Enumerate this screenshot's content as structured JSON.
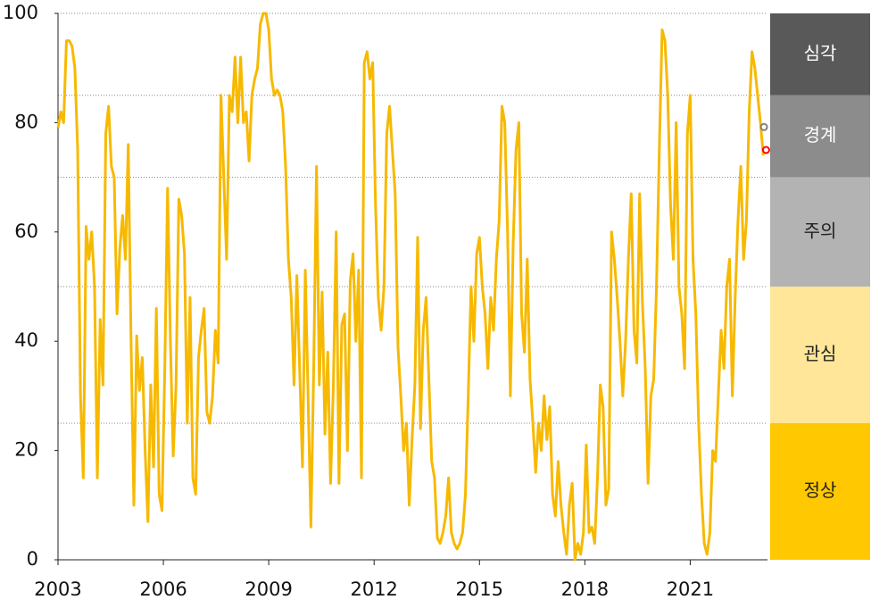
{
  "chart_data": {
    "type": "line",
    "xlim": [
      2003,
      2023.2
    ],
    "xticks": [
      2003,
      2006,
      2009,
      2012,
      2015,
      2018,
      2021
    ],
    "ylim": [
      0,
      100
    ],
    "yticks": [
      0,
      20,
      40,
      60,
      80,
      100
    ],
    "series": [
      {
        "color": "#f7b900",
        "x": [
          2003,
          2003.08,
          2003.16,
          2003.24,
          2003.32,
          2003.4,
          2003.48,
          2003.56,
          2003.64,
          2003.72,
          2003.8,
          2003.88,
          2003.96,
          2004.04,
          2004.12,
          2004.2,
          2004.28,
          2004.36,
          2004.44,
          2004.52,
          2004.6,
          2004.68,
          2004.76,
          2004.84,
          2004.92,
          2005,
          2005.08,
          2005.16,
          2005.24,
          2005.32,
          2005.4,
          2005.48,
          2005.56,
          2005.64,
          2005.72,
          2005.8,
          2005.88,
          2005.96,
          2006.04,
          2006.12,
          2006.2,
          2006.28,
          2006.36,
          2006.44,
          2006.52,
          2006.6,
          2006.68,
          2006.76,
          2006.84,
          2006.92,
          2007,
          2007.08,
          2007.16,
          2007.24,
          2007.32,
          2007.4,
          2007.48,
          2007.56,
          2007.64,
          2007.72,
          2007.8,
          2007.88,
          2007.96,
          2008.04,
          2008.12,
          2008.2,
          2008.28,
          2008.36,
          2008.44,
          2008.52,
          2008.6,
          2008.68,
          2008.76,
          2008.84,
          2008.92,
          2009,
          2009.08,
          2009.16,
          2009.24,
          2009.32,
          2009.4,
          2009.48,
          2009.56,
          2009.64,
          2009.72,
          2009.8,
          2009.88,
          2009.96,
          2010.04,
          2010.12,
          2010.2,
          2010.28,
          2010.36,
          2010.44,
          2010.52,
          2010.6,
          2010.68,
          2010.76,
          2010.84,
          2010.92,
          2011,
          2011.08,
          2011.16,
          2011.24,
          2011.32,
          2011.4,
          2011.48,
          2011.56,
          2011.64,
          2011.72,
          2011.8,
          2011.88,
          2011.96,
          2012.04,
          2012.12,
          2012.2,
          2012.28,
          2012.36,
          2012.44,
          2012.52,
          2012.6,
          2012.68,
          2012.76,
          2012.84,
          2012.92,
          2013,
          2013.08,
          2013.16,
          2013.24,
          2013.32,
          2013.4,
          2013.48,
          2013.56,
          2013.64,
          2013.72,
          2013.8,
          2013.88,
          2013.96,
          2014.04,
          2014.12,
          2014.2,
          2014.28,
          2014.36,
          2014.44,
          2014.52,
          2014.6,
          2014.68,
          2014.76,
          2014.84,
          2014.92,
          2015,
          2015.08,
          2015.16,
          2015.24,
          2015.32,
          2015.4,
          2015.48,
          2015.56,
          2015.64,
          2015.72,
          2015.8,
          2015.88,
          2015.96,
          2016.04,
          2016.12,
          2016.2,
          2016.28,
          2016.36,
          2016.44,
          2016.52,
          2016.6,
          2016.68,
          2016.76,
          2016.84,
          2016.92,
          2017,
          2017.08,
          2017.16,
          2017.24,
          2017.32,
          2017.4,
          2017.48,
          2017.56,
          2017.64,
          2017.72,
          2017.8,
          2017.88,
          2017.96,
          2018.04,
          2018.12,
          2018.2,
          2018.28,
          2018.36,
          2018.44,
          2018.52,
          2018.6,
          2018.68,
          2018.76,
          2018.84,
          2018.92,
          2019,
          2019.08,
          2019.16,
          2019.24,
          2019.32,
          2019.4,
          2019.48,
          2019.56,
          2019.64,
          2019.72,
          2019.8,
          2019.88,
          2019.96,
          2020.04,
          2020.12,
          2020.2,
          2020.28,
          2020.36,
          2020.44,
          2020.52,
          2020.6,
          2020.68,
          2020.76,
          2020.84,
          2020.92,
          2021,
          2021.08,
          2021.16,
          2021.24,
          2021.32,
          2021.4,
          2021.48,
          2021.56,
          2021.64,
          2021.72,
          2021.8,
          2021.88,
          2021.96,
          2022.04,
          2022.12,
          2022.2,
          2022.28,
          2022.36,
          2022.44,
          2022.52,
          2022.6,
          2022.68,
          2022.76,
          2022.84,
          2022.92,
          2023,
          2023.08
        ],
        "values": [
          79,
          82,
          80,
          95,
          95,
          94,
          90,
          75,
          30,
          15,
          61,
          55,
          60,
          50,
          15,
          44,
          32,
          78,
          83,
          72,
          70,
          45,
          57,
          63,
          55,
          76,
          40,
          10,
          41,
          31,
          37,
          20,
          7,
          32,
          17,
          46,
          12,
          9,
          35,
          68,
          40,
          19,
          32,
          66,
          63,
          56,
          25,
          48,
          15,
          12,
          37,
          42,
          46,
          27,
          25,
          30,
          42,
          36,
          85,
          70,
          55,
          85,
          82,
          92,
          80,
          92,
          80,
          82,
          73,
          85,
          88,
          90,
          98,
          100,
          100,
          97,
          88,
          85,
          86,
          85,
          82,
          72,
          55,
          48,
          32,
          52,
          35,
          17,
          53,
          30,
          6,
          35,
          72,
          32,
          49,
          23,
          38,
          14,
          32,
          60,
          14,
          43,
          45,
          20,
          51,
          56,
          40,
          53,
          15,
          91,
          93,
          88,
          91,
          65,
          48,
          42,
          50,
          78,
          83,
          75,
          67,
          39,
          30,
          20,
          25,
          10,
          22,
          32,
          59,
          24,
          42,
          48,
          33,
          18,
          15,
          4,
          3,
          5,
          8,
          15,
          5,
          3,
          2,
          3,
          5,
          12,
          30,
          50,
          40,
          56,
          59,
          50,
          45,
          35,
          48,
          42,
          55,
          62,
          83,
          80,
          60,
          30,
          58,
          75,
          80,
          45,
          38,
          55,
          33,
          25,
          16,
          25,
          20,
          30,
          22,
          28,
          12,
          8,
          18,
          10,
          5,
          1,
          10,
          14,
          0,
          3,
          1,
          5,
          21,
          5,
          6,
          3,
          15,
          32,
          28,
          10,
          13,
          60,
          55,
          48,
          40,
          30,
          40,
          55,
          67,
          42,
          36,
          67,
          47,
          35,
          14,
          30,
          33,
          50,
          75,
          97,
          95,
          85,
          65,
          55,
          80,
          50,
          45,
          35,
          78,
          85,
          55,
          45,
          25,
          12,
          3,
          1,
          5,
          20,
          18,
          30,
          42,
          35,
          50,
          55,
          30,
          48,
          62,
          72,
          55,
          62,
          82,
          93,
          90,
          85,
          80,
          74
        ]
      }
    ],
    "markers": [
      {
        "x": 2023.1,
        "y": 79.2,
        "color": "#7f7f7f"
      },
      {
        "x": 2023.16,
        "y": 75,
        "color": "#ff0000"
      }
    ],
    "bands": [
      {
        "label": "심각",
        "from": 85,
        "to": 100,
        "color": "#595959",
        "text_color": "#ffffff"
      },
      {
        "label": "경계",
        "from": 70,
        "to": 85,
        "color": "#8c8c8c",
        "text_color": "#ffffff"
      },
      {
        "label": "주의",
        "from": 50,
        "to": 70,
        "color": "#b3b3b3",
        "text_color": "#222222"
      },
      {
        "label": "관심",
        "from": 25,
        "to": 50,
        "color": "#ffe699",
        "text_color": "#222222"
      },
      {
        "label": "정상",
        "from": 0,
        "to": 25,
        "color": "#ffc800",
        "text_color": "#222222"
      }
    ]
  }
}
